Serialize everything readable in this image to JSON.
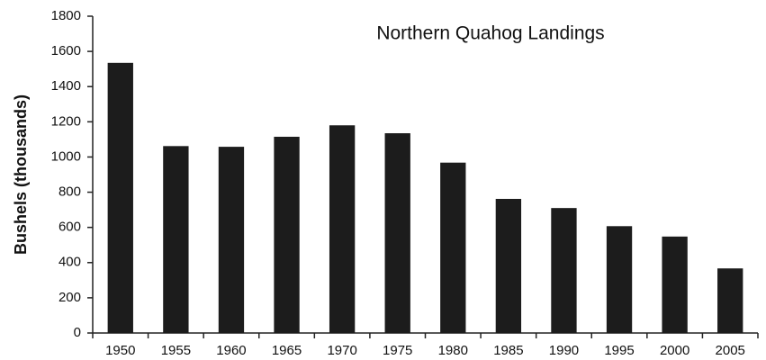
{
  "chart_data": {
    "type": "bar",
    "title": "Northern Quahog Landings",
    "y_label": "Bushels (thousands)",
    "categories": [
      "1950",
      "1955",
      "1960",
      "1965",
      "1970",
      "1975",
      "1980",
      "1985",
      "1990",
      "1995",
      "2000",
      "2005"
    ],
    "values": [
      1535,
      1062,
      1058,
      1115,
      1180,
      1135,
      968,
      762,
      710,
      607,
      548,
      367
    ],
    "color": "#1c1c1c",
    "ylim": [
      0,
      1800
    ],
    "yticks": [
      0,
      200,
      400,
      600,
      800,
      1000,
      1200,
      1400,
      1600,
      1800
    ],
    "grid": false
  }
}
